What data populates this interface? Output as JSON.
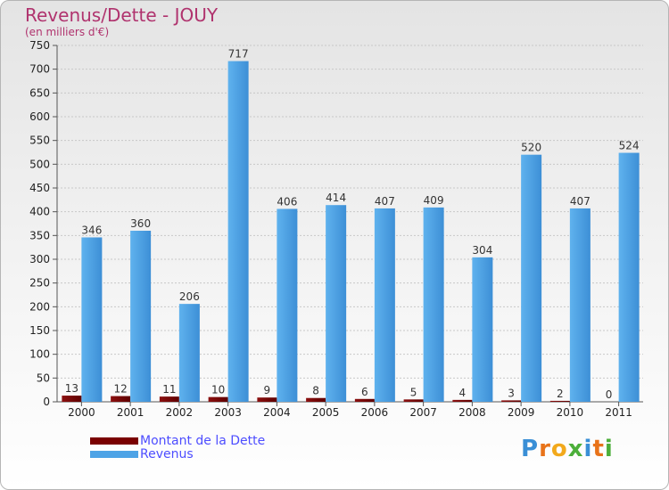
{
  "chart_data": {
    "type": "bar",
    "title": "Revenus/Dette - JOUY",
    "subtitle": "(en milliers d'€)",
    "categories": [
      "2000",
      "2001",
      "2002",
      "2003",
      "2004",
      "2005",
      "2006",
      "2007",
      "2008",
      "2009",
      "2010",
      "2011"
    ],
    "series": [
      {
        "name": "Montant de la Dette",
        "color": "#7a0000",
        "values": [
          13,
          12,
          11,
          10,
          9,
          8,
          6,
          5,
          4,
          3,
          2,
          0
        ]
      },
      {
        "name": "Revenus",
        "color": "#4da3e6",
        "values": [
          346,
          360,
          206,
          717,
          406,
          414,
          407,
          409,
          304,
          520,
          407,
          524
        ]
      }
    ],
    "yticks": [
      0,
      50,
      100,
      150,
      200,
      250,
      300,
      350,
      400,
      450,
      500,
      550,
      600,
      650,
      700,
      750
    ],
    "ylim": [
      0,
      750
    ],
    "grid": true,
    "legend": "bottom-left"
  },
  "legend": {
    "debt_label": "Montant de la Dette",
    "revenue_label": "Revenus"
  },
  "logo": {
    "letters": [
      "P",
      "r",
      "o",
      "x",
      "i",
      "t",
      "i"
    ],
    "colors": [
      "#3a8fd6",
      "#e8731a",
      "#f2a91c",
      "#4caf3a",
      "#3a8fd6",
      "#e8731a",
      "#4caf3a"
    ]
  }
}
